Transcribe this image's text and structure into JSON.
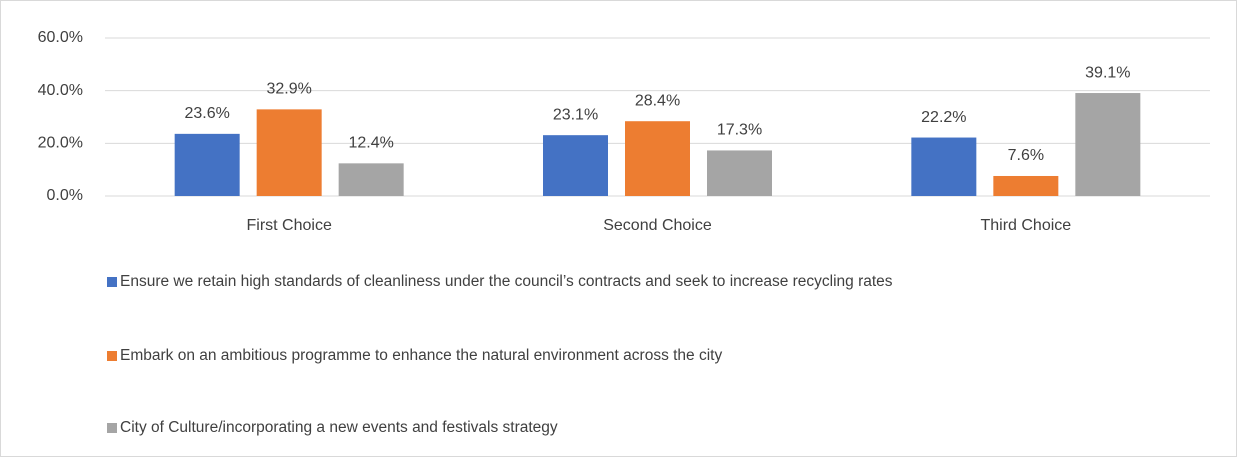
{
  "chart_data": {
    "type": "bar",
    "categories": [
      "First Choice",
      "Second Choice",
      "Third Choice"
    ],
    "series": [
      {
        "name": "Ensure we retain high standards of cleanliness under the council’s contracts and seek to increase recycling rates",
        "color": "#4472c4",
        "values": [
          23.6,
          23.1,
          22.2
        ],
        "value_labels": [
          "23.6%",
          "23.1%",
          "22.2%"
        ]
      },
      {
        "name": "Embark on an ambitious programme to enhance the natural environment across the city",
        "color": "#ed7d31",
        "values": [
          32.9,
          28.4,
          7.6
        ],
        "value_labels": [
          "32.9%",
          "28.4%",
          "7.6%"
        ]
      },
      {
        "name": "City of Culture/incorporating a new events and festivals strategy",
        "color": "#a5a5a5",
        "values": [
          12.4,
          17.3,
          39.1
        ],
        "value_labels": [
          "12.4%",
          "17.3%",
          "39.1%"
        ]
      }
    ],
    "ylim": [
      0,
      60
    ],
    "yticks": [
      {
        "value": 0,
        "label": "0.0%"
      },
      {
        "value": 20,
        "label": "20.0%"
      },
      {
        "value": 40,
        "label": "40.0%"
      },
      {
        "value": 60,
        "label": "60.0%"
      }
    ],
    "grid": true,
    "legend": "bottom"
  }
}
